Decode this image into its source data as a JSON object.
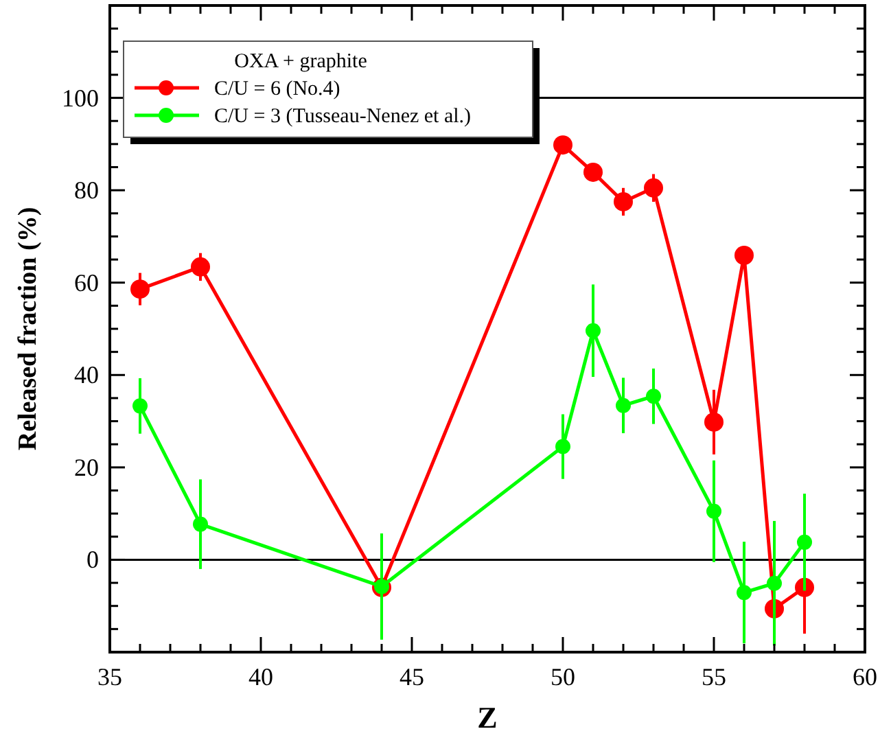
{
  "chart_data": {
    "type": "line",
    "xlabel": "Z",
    "ylabel": "Released fraction (%)",
    "legend_title": "OXA + graphite",
    "legend": "top left",
    "marker": "circle",
    "line_style": "solid",
    "xlim": [
      35,
      60
    ],
    "ylim": [
      -20,
      120
    ],
    "xticks": [
      35,
      {
        "value": 36,
        "label": null
      },
      {
        "value": 37,
        "label": null
      },
      {
        "value": 38,
        "label": null
      },
      {
        "value": 39,
        "label": null
      },
      40,
      {
        "value": 41,
        "label": null
      },
      {
        "value": 42,
        "label": null
      },
      {
        "value": 43,
        "label": null
      },
      {
        "value": 44,
        "label": null
      },
      45,
      {
        "value": 46,
        "label": null
      },
      {
        "value": 47,
        "label": null
      },
      {
        "value": 48,
        "label": null
      },
      {
        "value": 49,
        "label": null
      },
      50,
      {
        "value": 51,
        "label": null
      },
      {
        "value": 52,
        "label": null
      },
      {
        "value": 53,
        "label": null
      },
      {
        "value": 54,
        "label": null
      },
      55,
      {
        "value": 56,
        "label": null
      },
      {
        "value": 57,
        "label": null
      },
      {
        "value": 58,
        "label": null
      },
      {
        "value": 59,
        "label": null
      },
      60
    ],
    "yticks": [
      {
        "value": -20,
        "label": null
      },
      {
        "value": -15,
        "label": null
      },
      {
        "value": -10,
        "label": null
      },
      {
        "value": -5,
        "label": null
      },
      0,
      {
        "value": 5,
        "label": null
      },
      {
        "value": 10,
        "label": null
      },
      {
        "value": 15,
        "label": null
      },
      20,
      {
        "value": 25,
        "label": null
      },
      {
        "value": 30,
        "label": null
      },
      {
        "value": 35,
        "label": null
      },
      40,
      {
        "value": 45,
        "label": null
      },
      {
        "value": 50,
        "label": null
      },
      {
        "value": 55,
        "label": null
      },
      60,
      {
        "value": 65,
        "label": null
      },
      {
        "value": 70,
        "label": null
      },
      {
        "value": 75,
        "label": null
      },
      80,
      {
        "value": 85,
        "label": null
      },
      {
        "value": 90,
        "label": null
      },
      {
        "value": 95,
        "label": null
      },
      100,
      {
        "value": 105,
        "label": null
      },
      {
        "value": 110,
        "label": null
      },
      {
        "value": 115,
        "label": null
      },
      {
        "value": 120,
        "label": null
      }
    ],
    "ref_lines": [
      {
        "axis": "y",
        "value": 0,
        "color": "#000000"
      },
      {
        "axis": "y",
        "value": 100,
        "color": "#000000"
      }
    ],
    "series": [
      {
        "name": "C/U = 6 (No.4)",
        "color": "#ff0000",
        "x": [
          36,
          38,
          44,
          50,
          51,
          52,
          53,
          55,
          56,
          57,
          58
        ],
        "values": [
          58.6,
          63.4,
          -6,
          89.8,
          83.9,
          77.5,
          80.5,
          29.8,
          65.9,
          -10.6,
          -6
        ],
        "errors": [
          3.5,
          3,
          null,
          1,
          1,
          3,
          3,
          7,
          2,
          3,
          10
        ]
      },
      {
        "name": "C/U = 3 (Tusseau-Nenez et al.)",
        "color": "#00ff00",
        "x": [
          36,
          38,
          44,
          50,
          51,
          52,
          53,
          55,
          56,
          57,
          58
        ],
        "values": [
          33.3,
          7.7,
          -5.8,
          24.5,
          49.6,
          33.4,
          35.4,
          10.5,
          -7.1,
          -5.1,
          3.8
        ],
        "errors": [
          6,
          9.7,
          11.5,
          7,
          10,
          6,
          6,
          11,
          11,
          13.5,
          10.5
        ]
      }
    ]
  }
}
